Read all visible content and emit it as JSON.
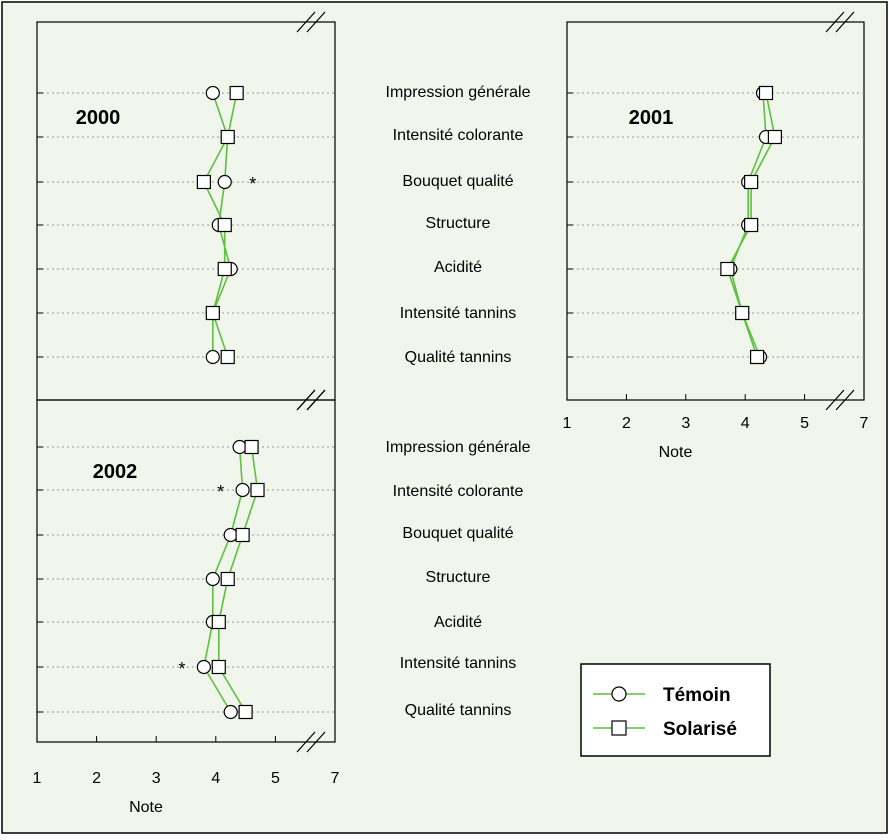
{
  "chart_data": {
    "type": "scatter",
    "colors": {
      "background": "#f0f6eb",
      "frame": "#000000",
      "line": "#5fbf3f",
      "grid": "#9a9a9a"
    },
    "legend": {
      "position": "bottom-right",
      "entries": [
        "Témoin",
        "Solarisé"
      ]
    },
    "categories": [
      "Impression générale",
      "Intensité colorante",
      "Bouquet qualité",
      "Structure",
      "Acidité",
      "Intensité tannins",
      "Qualité tannins"
    ],
    "xlabel": "Note",
    "x_ticks": [
      "1",
      "2",
      "3",
      "4",
      "5",
      "7"
    ],
    "xlim": [
      1,
      7
    ],
    "axis_break": true,
    "significance_marker": "*",
    "panels": [
      {
        "title": "2000",
        "series": [
          {
            "name": "Témoin",
            "marker": "circle",
            "values": [
              3.95,
              4.2,
              4.15,
              4.05,
              4.25,
              3.95,
              3.95
            ]
          },
          {
            "name": "Solarisé",
            "marker": "square",
            "values": [
              4.35,
              4.2,
              3.8,
              4.15,
              4.15,
              3.95,
              4.2
            ]
          }
        ],
        "significant": [
          "Bouquet qualité"
        ]
      },
      {
        "title": "2001",
        "series": [
          {
            "name": "Témoin",
            "marker": "circle",
            "values": [
              4.3,
              4.35,
              4.05,
              4.05,
              3.75,
              3.95,
              4.25
            ]
          },
          {
            "name": "Solarisé",
            "marker": "square",
            "values": [
              4.35,
              4.5,
              4.1,
              4.1,
              3.7,
              3.95,
              4.2
            ]
          }
        ],
        "significant": []
      },
      {
        "title": "2002",
        "series": [
          {
            "name": "Témoin",
            "marker": "circle",
            "values": [
              4.4,
              4.45,
              4.25,
              3.95,
              3.95,
              3.8,
              4.25
            ]
          },
          {
            "name": "Solarisé",
            "marker": "square",
            "values": [
              4.6,
              4.7,
              4.45,
              4.2,
              4.05,
              4.05,
              4.5
            ]
          }
        ],
        "significant": [
          "Intensité colorante",
          "Intensité tannins"
        ]
      }
    ]
  }
}
